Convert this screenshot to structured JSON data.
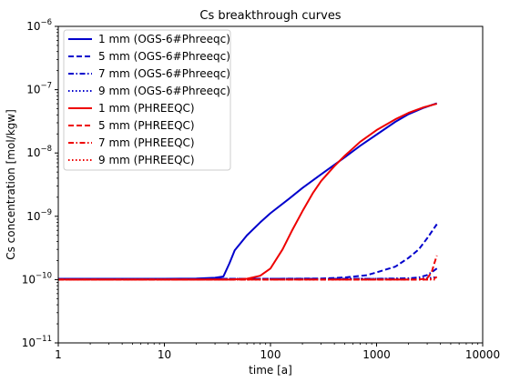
{
  "chart_data": {
    "type": "line",
    "title": "Cs breakthrough curves",
    "xlabel": "time [a]",
    "ylabel": "Cs concentration [mol/kgw]",
    "xscale": "log",
    "yscale": "log",
    "xlim": [
      1,
      10000
    ],
    "ylim": [
      1e-11,
      1e-06
    ],
    "grid": false,
    "legend_position": "top-left",
    "x_ticks": [
      {
        "value": 1,
        "label": "1"
      },
      {
        "value": 10,
        "label": "10"
      },
      {
        "value": 100,
        "label": "100"
      },
      {
        "value": 1000,
        "label": "1000"
      },
      {
        "value": 10000,
        "label": "10000"
      }
    ],
    "y_ticks": [
      {
        "value": 1e-11,
        "base": "10",
        "exp": "−11"
      },
      {
        "value": 1e-10,
        "base": "10",
        "exp": "−10"
      },
      {
        "value": 1e-09,
        "base": "10",
        "exp": "−9"
      },
      {
        "value": 1e-08,
        "base": "10",
        "exp": "−8"
      },
      {
        "value": 1e-07,
        "base": "10",
        "exp": "−7"
      },
      {
        "value": 1e-06,
        "base": "10",
        "exp": "−6"
      }
    ],
    "series": [
      {
        "name": "1 mm (OGS-6#Phreeqc)",
        "color": "#0000cc",
        "dash": "solid",
        "points": [
          [
            1,
            1.03e-10
          ],
          [
            10,
            1.03e-10
          ],
          [
            20,
            1.04e-10
          ],
          [
            30,
            1.07e-10
          ],
          [
            36,
            1.12e-10
          ],
          [
            41,
            1.8e-10
          ],
          [
            46,
            2.9e-10
          ],
          [
            60,
            5e-10
          ],
          [
            80,
            8e-10
          ],
          [
            100,
            1.12e-09
          ],
          [
            150,
            1.9e-09
          ],
          [
            200,
            2.8e-09
          ],
          [
            300,
            4.6e-09
          ],
          [
            500,
            8.5e-09
          ],
          [
            700,
            1.3e-08
          ],
          [
            1000,
            1.95e-08
          ],
          [
            1500,
            3.1e-08
          ],
          [
            2000,
            4.1e-08
          ],
          [
            2800,
            5.2e-08
          ],
          [
            3700,
            6.1e-08
          ]
        ]
      },
      {
        "name": "5 mm (OGS-6#Phreeqc)",
        "color": "#0000cc",
        "dash": "dashed",
        "points": [
          [
            1,
            1.03e-10
          ],
          [
            100,
            1.03e-10
          ],
          [
            300,
            1.04e-10
          ],
          [
            500,
            1.08e-10
          ],
          [
            800,
            1.17e-10
          ],
          [
            1000,
            1.3e-10
          ],
          [
            1500,
            1.6e-10
          ],
          [
            2000,
            2.2e-10
          ],
          [
            2500,
            3e-10
          ],
          [
            3000,
            4.5e-10
          ],
          [
            3700,
            7.5e-10
          ]
        ]
      },
      {
        "name": "7 mm (OGS-6#Phreeqc)",
        "color": "#0000cc",
        "dash": "dashdot",
        "points": [
          [
            1,
            1.03e-10
          ],
          [
            1000,
            1.03e-10
          ],
          [
            2000,
            1.05e-10
          ],
          [
            2500,
            1.08e-10
          ],
          [
            3000,
            1.18e-10
          ],
          [
            3400,
            1.35e-10
          ],
          [
            3700,
            1.5e-10
          ]
        ]
      },
      {
        "name": "9 mm (OGS-6#Phreeqc)",
        "color": "#0000cc",
        "dash": "dotted",
        "points": [
          [
            1,
            1.03e-10
          ],
          [
            2000,
            1.03e-10
          ],
          [
            3000,
            1.05e-10
          ],
          [
            3700,
            1.1e-10
          ]
        ]
      },
      {
        "name": "1 mm (PHREEQC)",
        "color": "#ee0000",
        "dash": "solid",
        "points": [
          [
            1,
            1e-10
          ],
          [
            40,
            1e-10
          ],
          [
            60,
            1.03e-10
          ],
          [
            80,
            1.15e-10
          ],
          [
            100,
            1.5e-10
          ],
          [
            130,
            3e-10
          ],
          [
            160,
            6e-10
          ],
          [
            200,
            1.2e-09
          ],
          [
            250,
            2.3e-09
          ],
          [
            300,
            3.6e-09
          ],
          [
            400,
            6.2e-09
          ],
          [
            500,
            9e-09
          ],
          [
            700,
            1.5e-08
          ],
          [
            1000,
            2.3e-08
          ],
          [
            1500,
            3.4e-08
          ],
          [
            2000,
            4.3e-08
          ],
          [
            2800,
            5.3e-08
          ],
          [
            3700,
            6e-08
          ]
        ]
      },
      {
        "name": "5 mm (PHREEQC)",
        "color": "#ee0000",
        "dash": "dashed",
        "points": [
          [
            1,
            1e-10
          ],
          [
            2500,
            1e-10
          ],
          [
            3000,
            1.05e-10
          ],
          [
            3300,
            1.3e-10
          ],
          [
            3500,
            1.8e-10
          ],
          [
            3700,
            2.4e-10
          ]
        ]
      },
      {
        "name": "7 mm (PHREEQC)",
        "color": "#ee0000",
        "dash": "dashdot",
        "points": [
          [
            1,
            1e-10
          ],
          [
            3000,
            1e-10
          ],
          [
            3500,
            1.05e-10
          ],
          [
            3700,
            1.1e-10
          ]
        ]
      },
      {
        "name": "9 mm (PHREEQC)",
        "color": "#ee0000",
        "dash": "dotted",
        "points": [
          [
            1,
            1e-10
          ],
          [
            3700,
            1e-10
          ]
        ]
      }
    ]
  }
}
